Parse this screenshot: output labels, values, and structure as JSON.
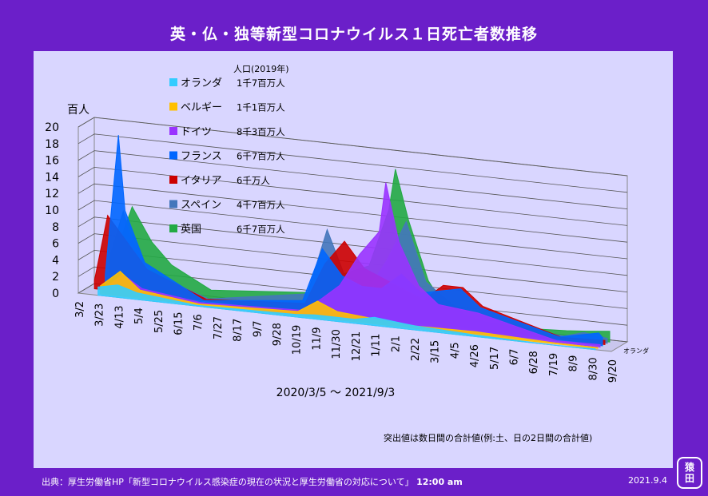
{
  "title": "英・仏・独等新型コロナウイルス１日死亡者数推移",
  "chart_data": {
    "type": "area",
    "title": "英・仏・独等新型コロナウイルス１日死亡者数推移",
    "ylabel": "百人",
    "ylim": [
      0,
      20
    ],
    "yticks": [
      "0",
      "2",
      "4",
      "6",
      "8",
      "10",
      "12",
      "14",
      "16",
      "18",
      "20"
    ],
    "xticks": [
      "3/2",
      "3/23",
      "4/13",
      "5/4",
      "5/25",
      "6/15",
      "7/6",
      "7/27",
      "8/17",
      "9/7",
      "9/28",
      "10/19",
      "11/9",
      "11/30",
      "12/21",
      "1/11",
      "2/1",
      "2/22",
      "3/15",
      "4/5",
      "4/26",
      "5/17",
      "6/7",
      "6/28",
      "7/19",
      "8/9",
      "8/30",
      "9/20"
    ],
    "xlabel": "2020/3/5 〜 2021/9/3",
    "depth_label": "オランダ",
    "legend_header": "人口(2019年)",
    "legend_position": "top-left",
    "grid": true,
    "series": [
      {
        "name": "オランダ",
        "population": "1千7百万人",
        "color": "#33ccff",
        "x": [
          "3/23",
          "4/13",
          "5/4",
          "7/6",
          "10/19",
          "11/9",
          "12/21",
          "1/11",
          "2/22",
          "4/26",
          "7/19",
          "9/3"
        ],
        "values": [
          1.0,
          1.5,
          0.8,
          0.1,
          0.3,
          0.5,
          0.5,
          1.0,
          0.5,
          0.2,
          0.0,
          0.1
        ]
      },
      {
        "name": "ベルギー",
        "population": "1千1百万人",
        "color": "#ffc000",
        "x": [
          "3/23",
          "4/13",
          "5/4",
          "7/6",
          "10/19",
          "11/9",
          "11/30",
          "1/11",
          "2/22",
          "4/26",
          "7/19",
          "9/3"
        ],
        "values": [
          1.0,
          3.0,
          1.0,
          0.1,
          0.5,
          2.0,
          1.0,
          0.6,
          0.3,
          0.4,
          0.1,
          0.1
        ]
      },
      {
        "name": "ドイツ",
        "population": "8千3百万人",
        "color": "#9933ff",
        "x": [
          "3/23",
          "4/13",
          "5/4",
          "7/6",
          "10/19",
          "11/9",
          "11/30",
          "12/21",
          "1/11",
          "1/18",
          "2/1",
          "2/22",
          "3/15",
          "4/26",
          "7/19",
          "9/3"
        ],
        "values": [
          0.3,
          2.5,
          1.0,
          0.1,
          0.5,
          2.0,
          4.0,
          8.0,
          11.0,
          17.0,
          10.0,
          5.0,
          3.0,
          2.5,
          0.2,
          0.3
        ]
      },
      {
        "name": "フランス",
        "population": "6千7百万人",
        "color": "#0066ff",
        "x": [
          "3/23",
          "4/6",
          "4/13",
          "5/4",
          "7/6",
          "10/19",
          "11/9",
          "11/30",
          "12/21",
          "1/11",
          "2/1",
          "2/22",
          "4/5",
          "4/26",
          "7/19",
          "8/30",
          "9/3"
        ],
        "values": [
          2.0,
          19.0,
          10.0,
          4.0,
          0.2,
          1.5,
          8.0,
          5.0,
          4.0,
          4.0,
          6.0,
          4.0,
          5.0,
          3.0,
          0.5,
          1.5,
          1.0
        ]
      },
      {
        "name": "イタリア",
        "population": "6千万人",
        "color": "#cc0000",
        "x": [
          "3/9",
          "3/23",
          "4/13",
          "5/4",
          "7/6",
          "10/19",
          "11/9",
          "11/30",
          "12/21",
          "1/11",
          "2/1",
          "2/22",
          "3/15",
          "4/5",
          "4/26",
          "7/19",
          "9/3"
        ],
        "values": [
          1.0,
          9.0,
          6.0,
          3.0,
          0.2,
          1.0,
          6.0,
          9.0,
          6.0,
          5.0,
          4.0,
          3.0,
          5.0,
          5.0,
          3.0,
          0.3,
          0.5
        ]
      },
      {
        "name": "スペイン",
        "population": "4千7百万人",
        "color": "#4477bb",
        "x": [
          "3/23",
          "4/6",
          "4/13",
          "5/4",
          "7/6",
          "10/19",
          "11/9",
          "11/30",
          "12/21",
          "1/11",
          "2/1",
          "2/22",
          "4/5",
          "4/26",
          "7/19",
          "8/9",
          "9/3"
        ],
        "values": [
          4.0,
          9.5,
          7.0,
          2.5,
          0.1,
          2.0,
          10.0,
          4.0,
          3.0,
          7.0,
          12.0,
          5.0,
          1.5,
          1.0,
          0.3,
          1.0,
          0.6
        ]
      },
      {
        "name": "英国",
        "population": "6千7百万人",
        "color": "#22aa44",
        "x": [
          "3/23",
          "4/13",
          "5/4",
          "5/25",
          "7/6",
          "10/19",
          "11/9",
          "11/30",
          "12/21",
          "1/11",
          "1/18",
          "2/1",
          "2/22",
          "3/15",
          "4/26",
          "7/19",
          "8/9",
          "9/3"
        ],
        "values": [
          3.0,
          10.0,
          6.0,
          3.5,
          1.0,
          2.0,
          4.0,
          5.0,
          6.0,
          13.0,
          18.0,
          12.0,
          5.0,
          1.5,
          0.3,
          0.8,
          1.0,
          1.3
        ]
      }
    ],
    "annotations": [
      "突出値は数日間の合計値(例:土、日の2日間の合計値)"
    ]
  },
  "footer": {
    "source_label": "出典：厚生労働省HP「新型コロナウイルス感染症の現在の状況と厚生労働省の対応について」",
    "source_time": "12:00 am",
    "date": "2021.9.4",
    "seal_chars": [
      "猿",
      "田"
    ]
  }
}
